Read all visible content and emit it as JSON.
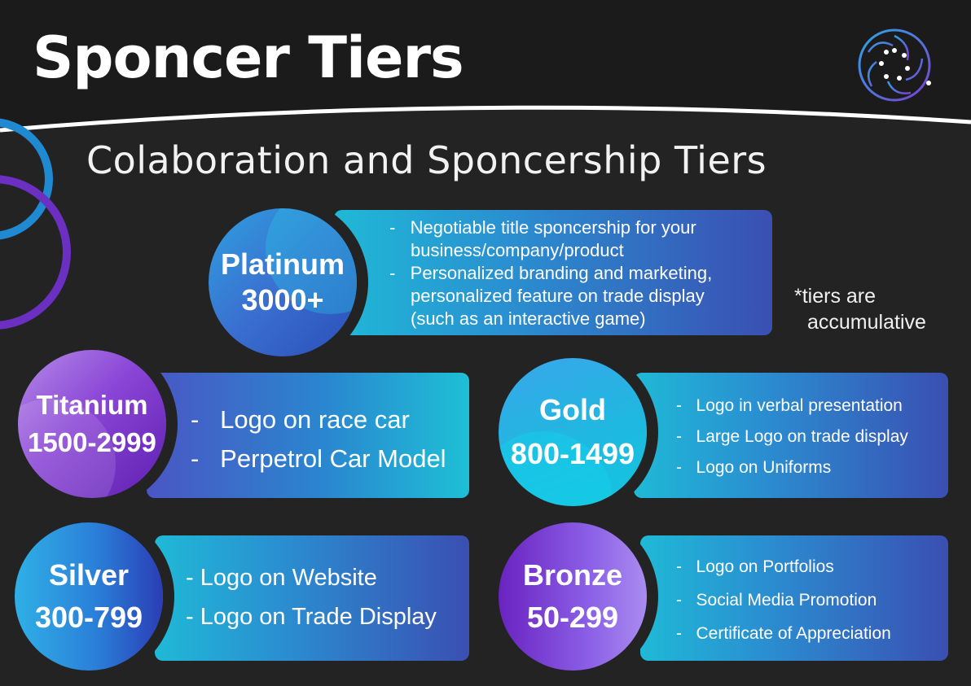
{
  "header": {
    "title": "Sponcer Tiers",
    "subtitle": "Colaboration and Sponcership Tiers"
  },
  "logo": {
    "icon": "dotted-ring-logo-icon"
  },
  "note": {
    "line1": "*tiers are",
    "line2": "accumulative"
  },
  "colors": {
    "background": "#232323",
    "cyan": "#1fb9d6",
    "blue": "#2a8fd1",
    "indigo": "#3a4fb2",
    "purple": "#7a3fd0",
    "deco_blue": "#1f8ad2",
    "deco_purple": "#6b2fc2"
  },
  "tiers": {
    "platinum": {
      "name": "Platinum",
      "range": "3000+",
      "benefits": [
        "Negotiable title sponcership for your",
        "business/company/product",
        "Personalized branding and marketing,",
        "personalized feature on trade display",
        "(such as an interactive game)"
      ]
    },
    "titanium": {
      "name": "Titanium",
      "range": "1500-2999",
      "benefits": [
        "Logo on race car",
        "Perpetrol Car Model"
      ]
    },
    "gold": {
      "name": "Gold",
      "range": "800-1499",
      "benefits": [
        "Logo in verbal presentation",
        "Large Logo on trade display",
        "Logo on Uniforms"
      ]
    },
    "silver": {
      "name": "Silver",
      "range": "300-799",
      "benefits": [
        "Logo on Website",
        "Logo on Trade Display"
      ]
    },
    "bronze": {
      "name": "Bronze",
      "range": "50-299",
      "benefits": [
        "Logo on Portfolios",
        "Social Media Promotion",
        "Certificate of Appreciation"
      ]
    }
  },
  "dash": "-"
}
